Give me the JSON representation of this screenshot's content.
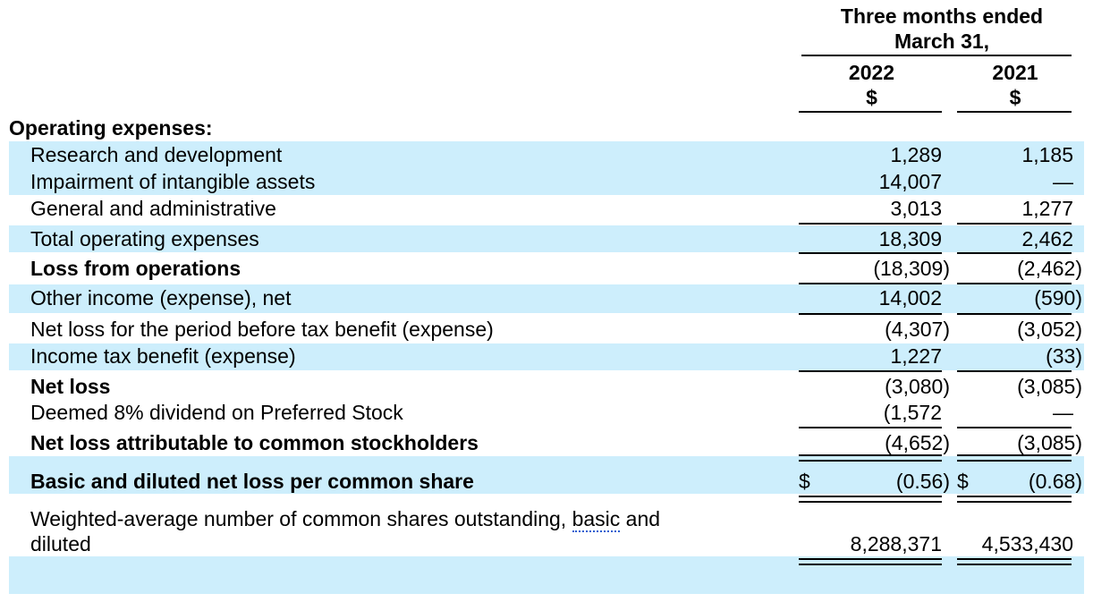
{
  "header": {
    "period_line1": "Three months ended",
    "period_line2": "March 31,",
    "col1_year": "2022",
    "col1_unit": "$",
    "col2_year": "2021",
    "col2_unit": "$"
  },
  "section_title": "Operating expenses:",
  "rows": [
    {
      "label": "Research and development",
      "v2022": "1,289",
      "v2021": "1,185"
    },
    {
      "label": "Impairment of intangible assets",
      "v2022": "14,007",
      "v2021": "—"
    },
    {
      "label": "General and administrative",
      "v2022": "3,013",
      "v2021": "1,277"
    },
    {
      "label": "Total operating expenses",
      "v2022": "18,309",
      "v2021": "2,462"
    },
    {
      "label": "Loss from operations",
      "v2022": "(18,309)",
      "v2021": "(2,462)"
    },
    {
      "label": "Other income (expense), net",
      "v2022": "14,002",
      "v2021": "(590)"
    },
    {
      "label": "Net loss for the period before tax benefit (expense)",
      "v2022": "(4,307)",
      "v2021": "(3,052)"
    },
    {
      "label": "Income tax benefit (expense)",
      "v2022": "1,227",
      "v2021": "(33)"
    },
    {
      "label": "Net loss",
      "v2022": "(3,080)",
      "v2021": "(3,085)"
    },
    {
      "label": "Deemed 8% dividend on Preferred Stock",
      "v2022": "(1,572",
      "v2021": "—"
    },
    {
      "label": "Net loss attributable to common stockholders",
      "v2022": "(4,652)",
      "v2021": "(3,085)"
    }
  ],
  "eps": {
    "label": "Basic and diluted net loss per common share",
    "currency": "$",
    "v2022": "(0.56)",
    "v2021": "(0.68)"
  },
  "shares": {
    "label_part1": "Weighted-average number of common shares outstanding, ",
    "label_marked": "basic",
    "label_part2": " and",
    "label_line2": "diluted",
    "v2022": "8,288,371",
    "v2021": "4,533,430"
  }
}
